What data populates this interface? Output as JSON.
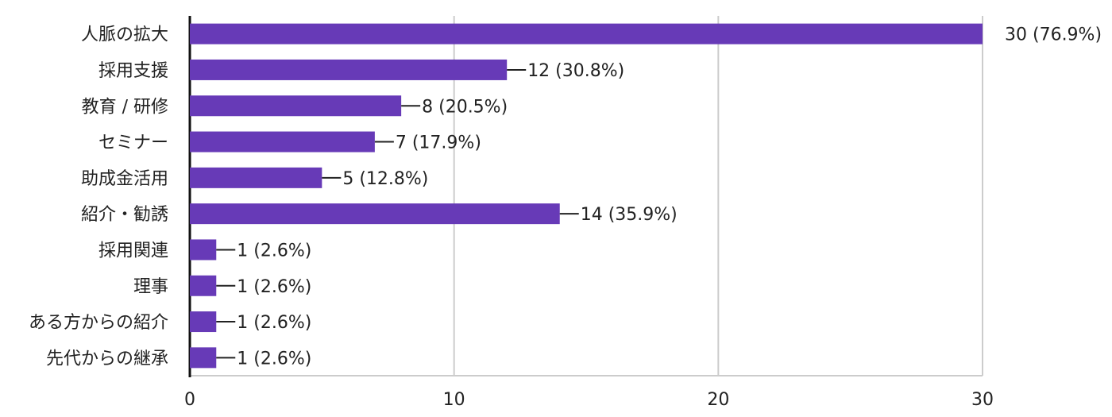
{
  "chart_data": {
    "type": "bar",
    "orientation": "horizontal",
    "categories": [
      "人脈の拡大",
      "採用支援",
      "教育 / 研修",
      "セミナー",
      "助成金活用",
      "紹介・勧誘",
      "採用関連",
      "理事",
      "ある方からの紹介",
      "先代からの継承"
    ],
    "values": [
      30,
      12,
      8,
      7,
      5,
      14,
      1,
      1,
      1,
      1
    ],
    "data_labels": [
      "30 (76.9%)",
      "12 (30.8%)",
      "8 (20.5%)",
      "7 (17.9%)",
      "5 (12.8%)",
      "14 (35.9%)",
      "1 (2.6%)",
      "1 (2.6%)",
      "1 (2.6%)",
      "1 (2.6%)"
    ],
    "xlim": [
      0,
      30
    ],
    "xticks": [
      0,
      10,
      20,
      30
    ],
    "grid": true,
    "title": "",
    "xlabel": "",
    "ylabel": "",
    "colors": {
      "bar": "#673ab7",
      "grid": "#cccccc",
      "axis": "#111111"
    }
  }
}
